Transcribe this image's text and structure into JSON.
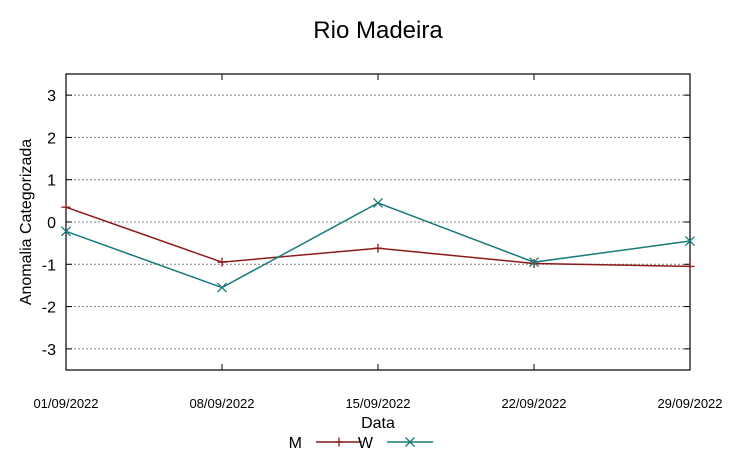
{
  "chart_data": {
    "type": "line",
    "title": "Rio Madeira",
    "xlabel": "Data",
    "ylabel": "Anomalia Categorizada",
    "categories": [
      "01/09/2022",
      "08/09/2022",
      "15/09/2022",
      "22/09/2022",
      "29/09/2022"
    ],
    "ylim": [
      -3.5,
      3.5
    ],
    "yticks": [
      3,
      2,
      1,
      0,
      -1,
      -2,
      -3
    ],
    "ytick_labels": [
      "3",
      "2",
      "1",
      "0",
      "-1",
      "-2",
      "-3"
    ],
    "grid": true,
    "legend_position": "bottom-center",
    "series": [
      {
        "name": "M",
        "color": "#8b1a1a",
        "marker": "plus",
        "values": [
          0.35,
          -0.95,
          -0.62,
          -0.98,
          -1.05
        ]
      },
      {
        "name": "W",
        "color": "#1a7a7a",
        "marker": "cross",
        "values": [
          -0.22,
          -1.55,
          0.45,
          -0.95,
          -0.45
        ]
      }
    ]
  }
}
